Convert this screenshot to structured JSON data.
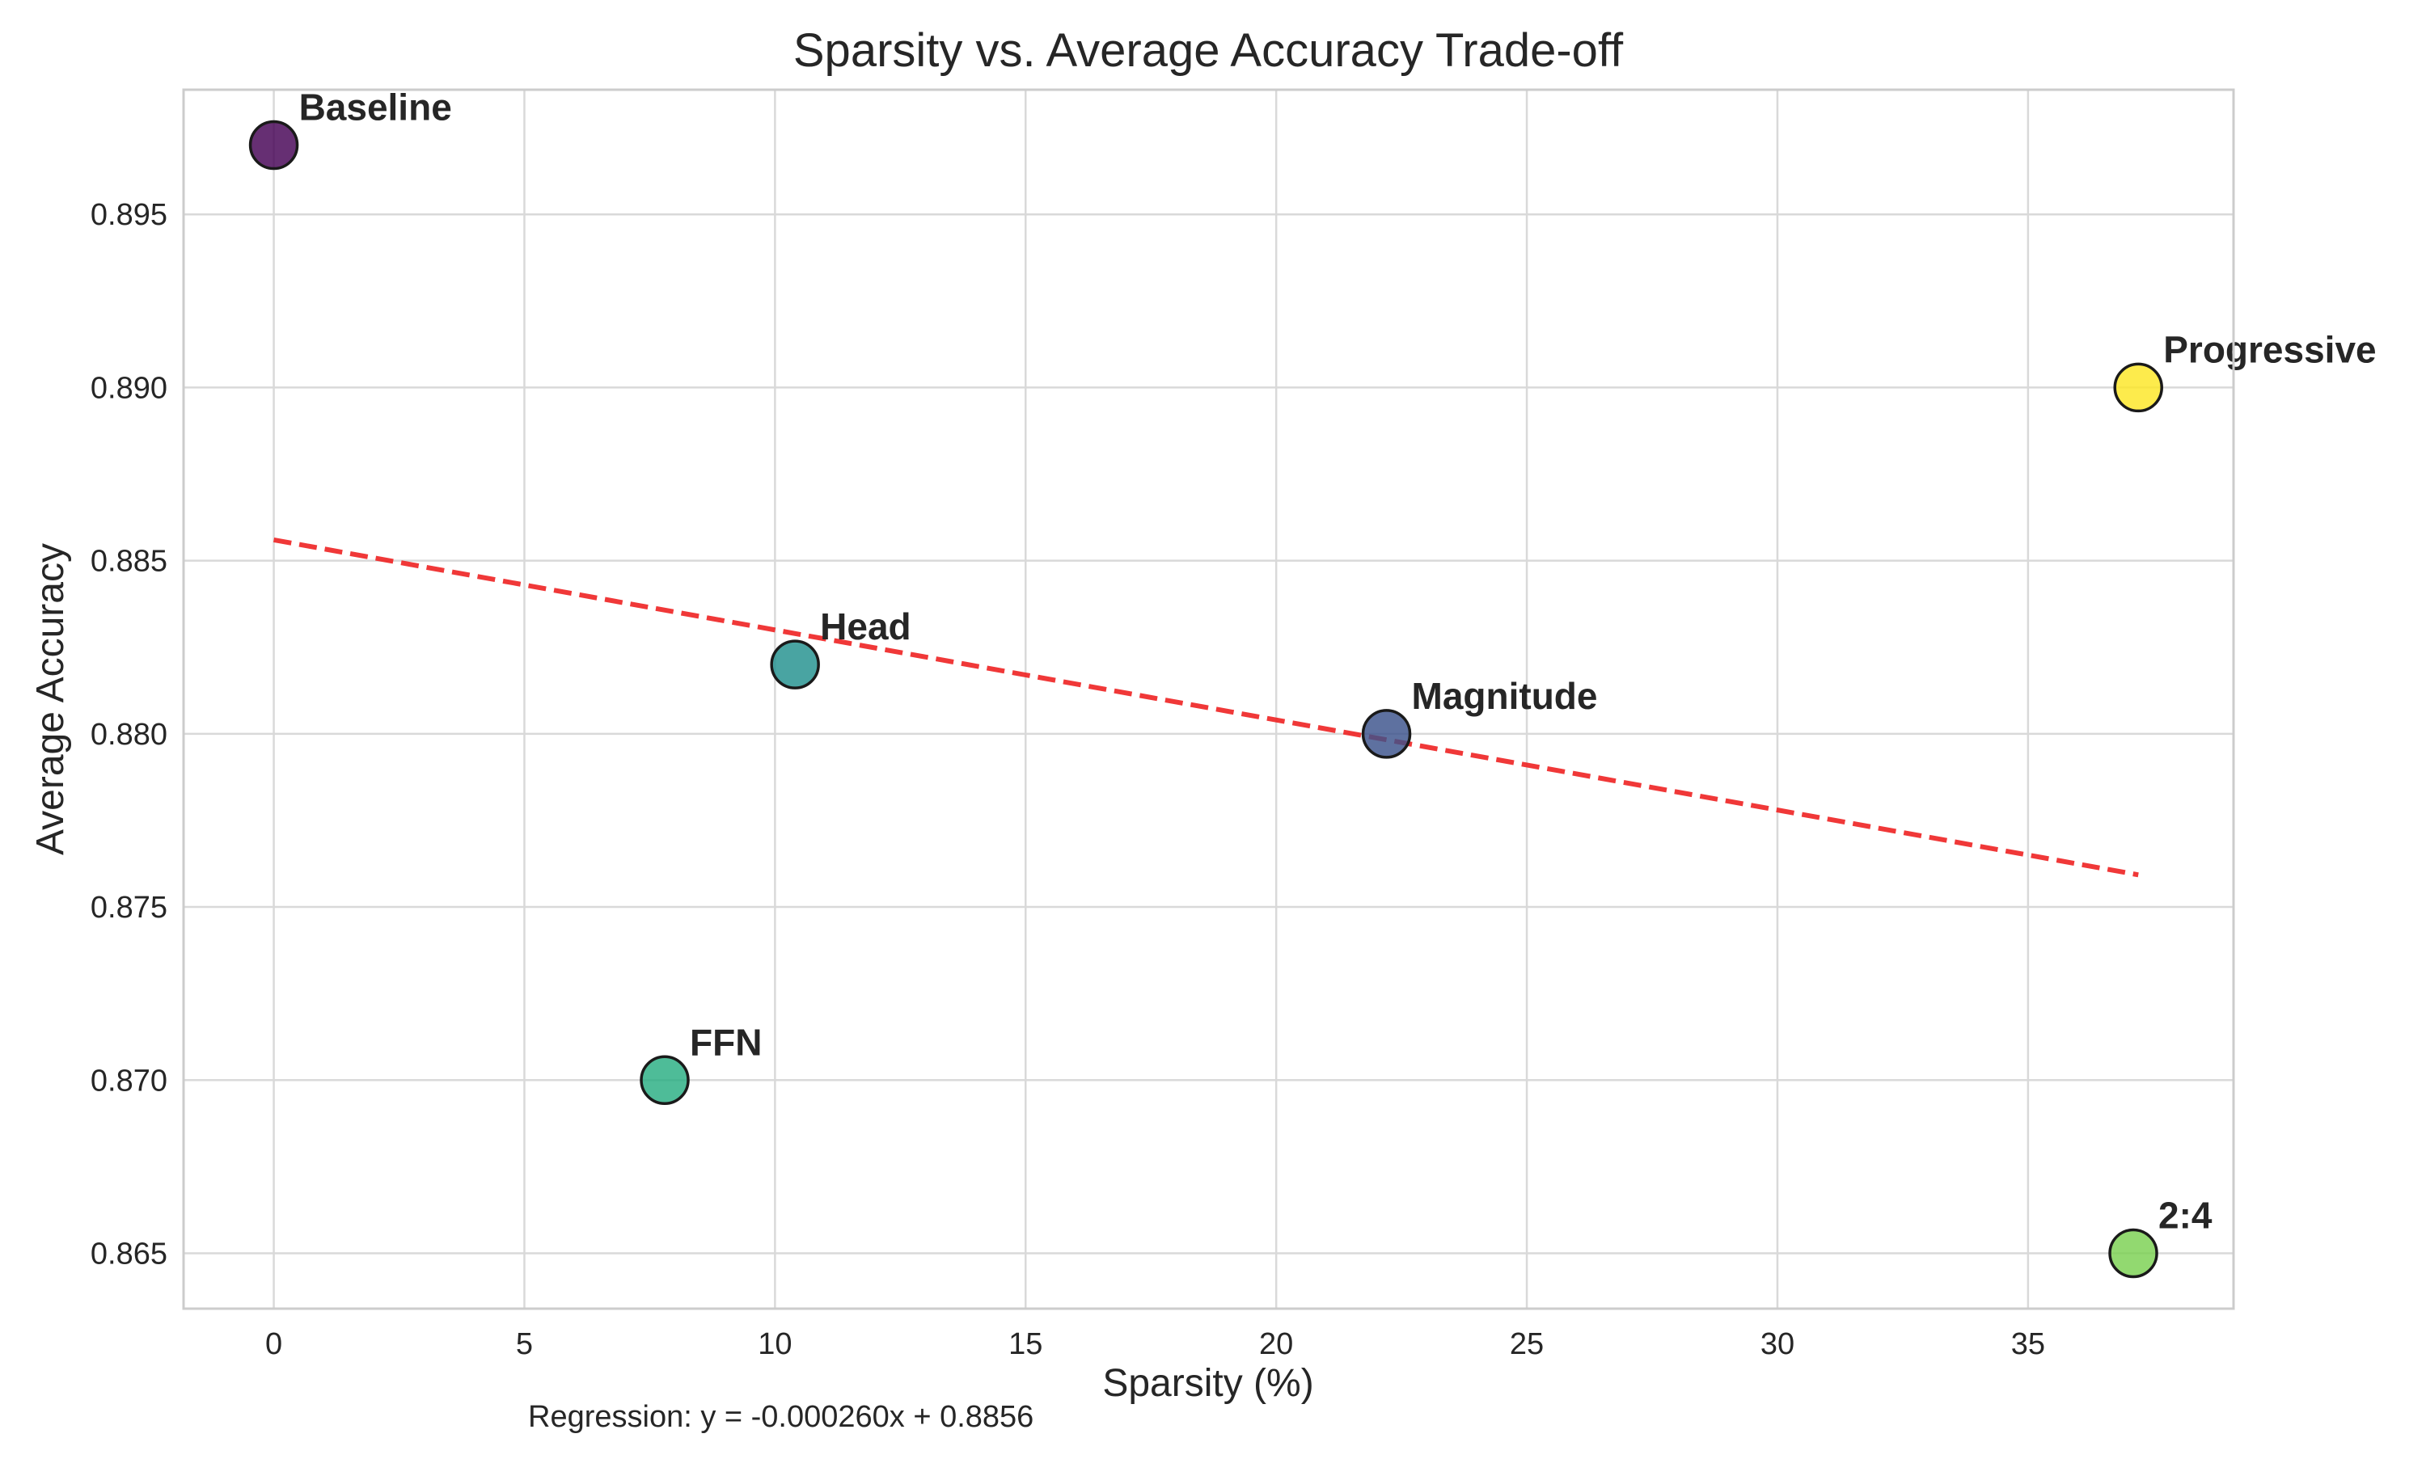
{
  "chart_data": {
    "type": "scatter",
    "title": "Sparsity vs. Average Accuracy Trade-off",
    "xlabel": "Sparsity (%)",
    "ylabel": "Average Accuracy",
    "xlim": [
      -1.8,
      39.1
    ],
    "ylim": [
      0.8634,
      0.8986
    ],
    "x_ticks": [
      0,
      5,
      10,
      15,
      20,
      25,
      30,
      35
    ],
    "x_tick_labels": [
      "0",
      "5",
      "10",
      "15",
      "20",
      "25",
      "30",
      "35"
    ],
    "y_ticks": [
      0.865,
      0.87,
      0.875,
      0.88,
      0.885,
      0.89,
      0.895
    ],
    "y_tick_labels": [
      "0.865",
      "0.870",
      "0.875",
      "0.880",
      "0.885",
      "0.890",
      "0.895"
    ],
    "grid": true,
    "points": [
      {
        "label": "Baseline",
        "x": 0.0,
        "y": 0.897,
        "color": "#440154"
      },
      {
        "label": "Magnitude",
        "x": 22.2,
        "y": 0.88,
        "color": "#3b528b"
      },
      {
        "label": "Head",
        "x": 10.4,
        "y": 0.882,
        "color": "#21908d"
      },
      {
        "label": "FFN",
        "x": 7.8,
        "y": 0.87,
        "color": "#27ad81"
      },
      {
        "label": "2:4",
        "x": 37.1,
        "y": 0.865,
        "color": "#7ad151"
      },
      {
        "label": "Progressive",
        "x": 37.2,
        "y": 0.89,
        "color": "#fde725"
      }
    ],
    "regression": {
      "slope": -0.00026,
      "intercept": 0.8856,
      "x_range": [
        0.0,
        37.2
      ],
      "color": "#ee2222",
      "style": "dashed"
    },
    "annotation": "Regression: y = -0.000260x + 0.8856"
  },
  "colors": {
    "grid": "#d9d9d9",
    "spine": "#cccccc",
    "marker_edge": "#1a1a1a"
  }
}
